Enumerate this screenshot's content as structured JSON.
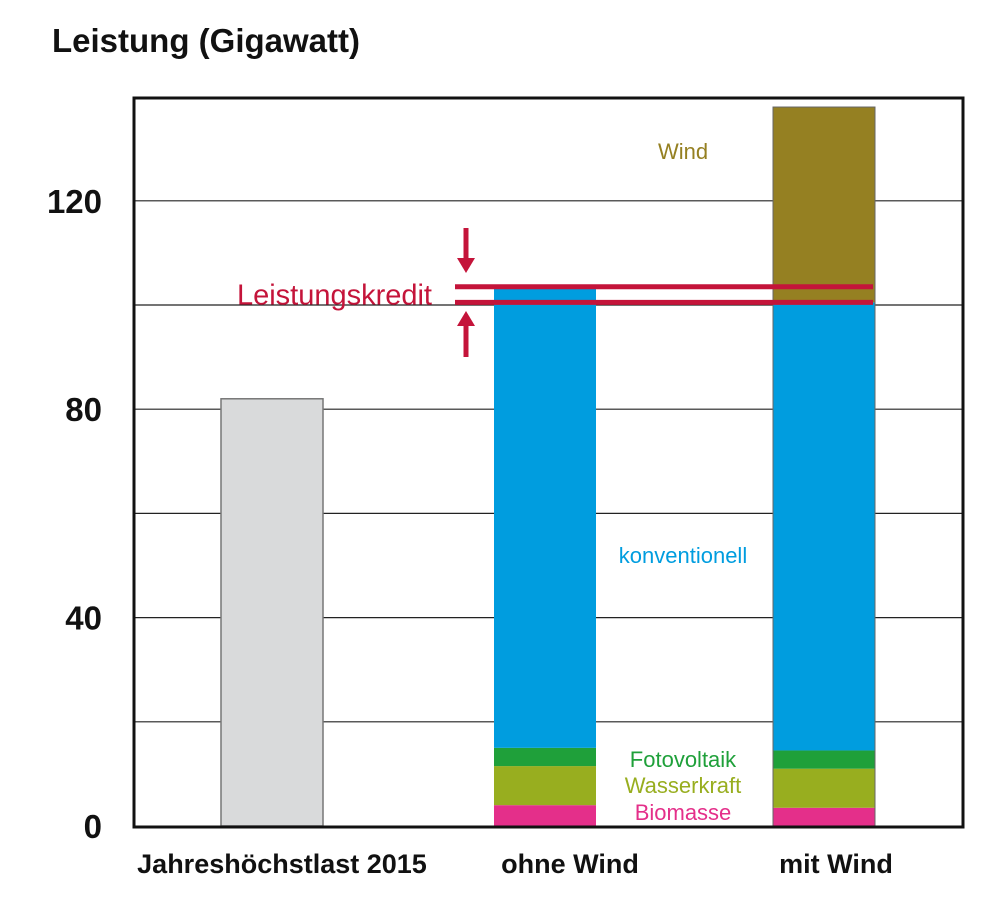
{
  "chart_data": {
    "type": "bar",
    "title": "Leistung (Gigawatt)",
    "xlabel": "",
    "ylabel": "",
    "ylim": [
      0,
      140
    ],
    "yticks": [
      0,
      20,
      40,
      60,
      80,
      100,
      120
    ],
    "ytick_labels": [
      "0",
      "",
      "40",
      "",
      "80",
      "",
      "120"
    ],
    "grid": true,
    "categories": [
      "Jahreshöchstlast 2015",
      "ohne Wind",
      "mit Wind"
    ],
    "series": [
      {
        "name": "Jahreshöchstlast",
        "color": "#d9dadb",
        "values": [
          82,
          0,
          0
        ]
      },
      {
        "name": "Biomasse",
        "color": "#e42f8a",
        "values": [
          0,
          4,
          3.5
        ]
      },
      {
        "name": "Wasserkraft",
        "color": "#98ae1f",
        "values": [
          0,
          7.5,
          7.5
        ]
      },
      {
        "name": "Fotovoltaik",
        "color": "#1fa03a",
        "values": [
          0,
          3.5,
          3.5
        ]
      },
      {
        "name": "konventionell",
        "color": "#009ddf",
        "values": [
          0,
          88.5,
          86
        ]
      },
      {
        "name": "Wind",
        "color": "#958022",
        "values": [
          0,
          0,
          37.5
        ]
      }
    ],
    "segment_labels": [
      {
        "text": "Wind",
        "color": "#958022"
      },
      {
        "text": "konventionell",
        "color": "#009ddf"
      },
      {
        "text": "Fotovoltaik",
        "color": "#1fa03a"
      },
      {
        "text": "Wasserkraft",
        "color": "#98ae1f"
      },
      {
        "text": "Biomasse",
        "color": "#e42f8a"
      }
    ],
    "annotation": {
      "text": "Leistungskredit",
      "color": "#c4143a",
      "lower_value": 100.5,
      "upper_value": 103.5
    }
  }
}
